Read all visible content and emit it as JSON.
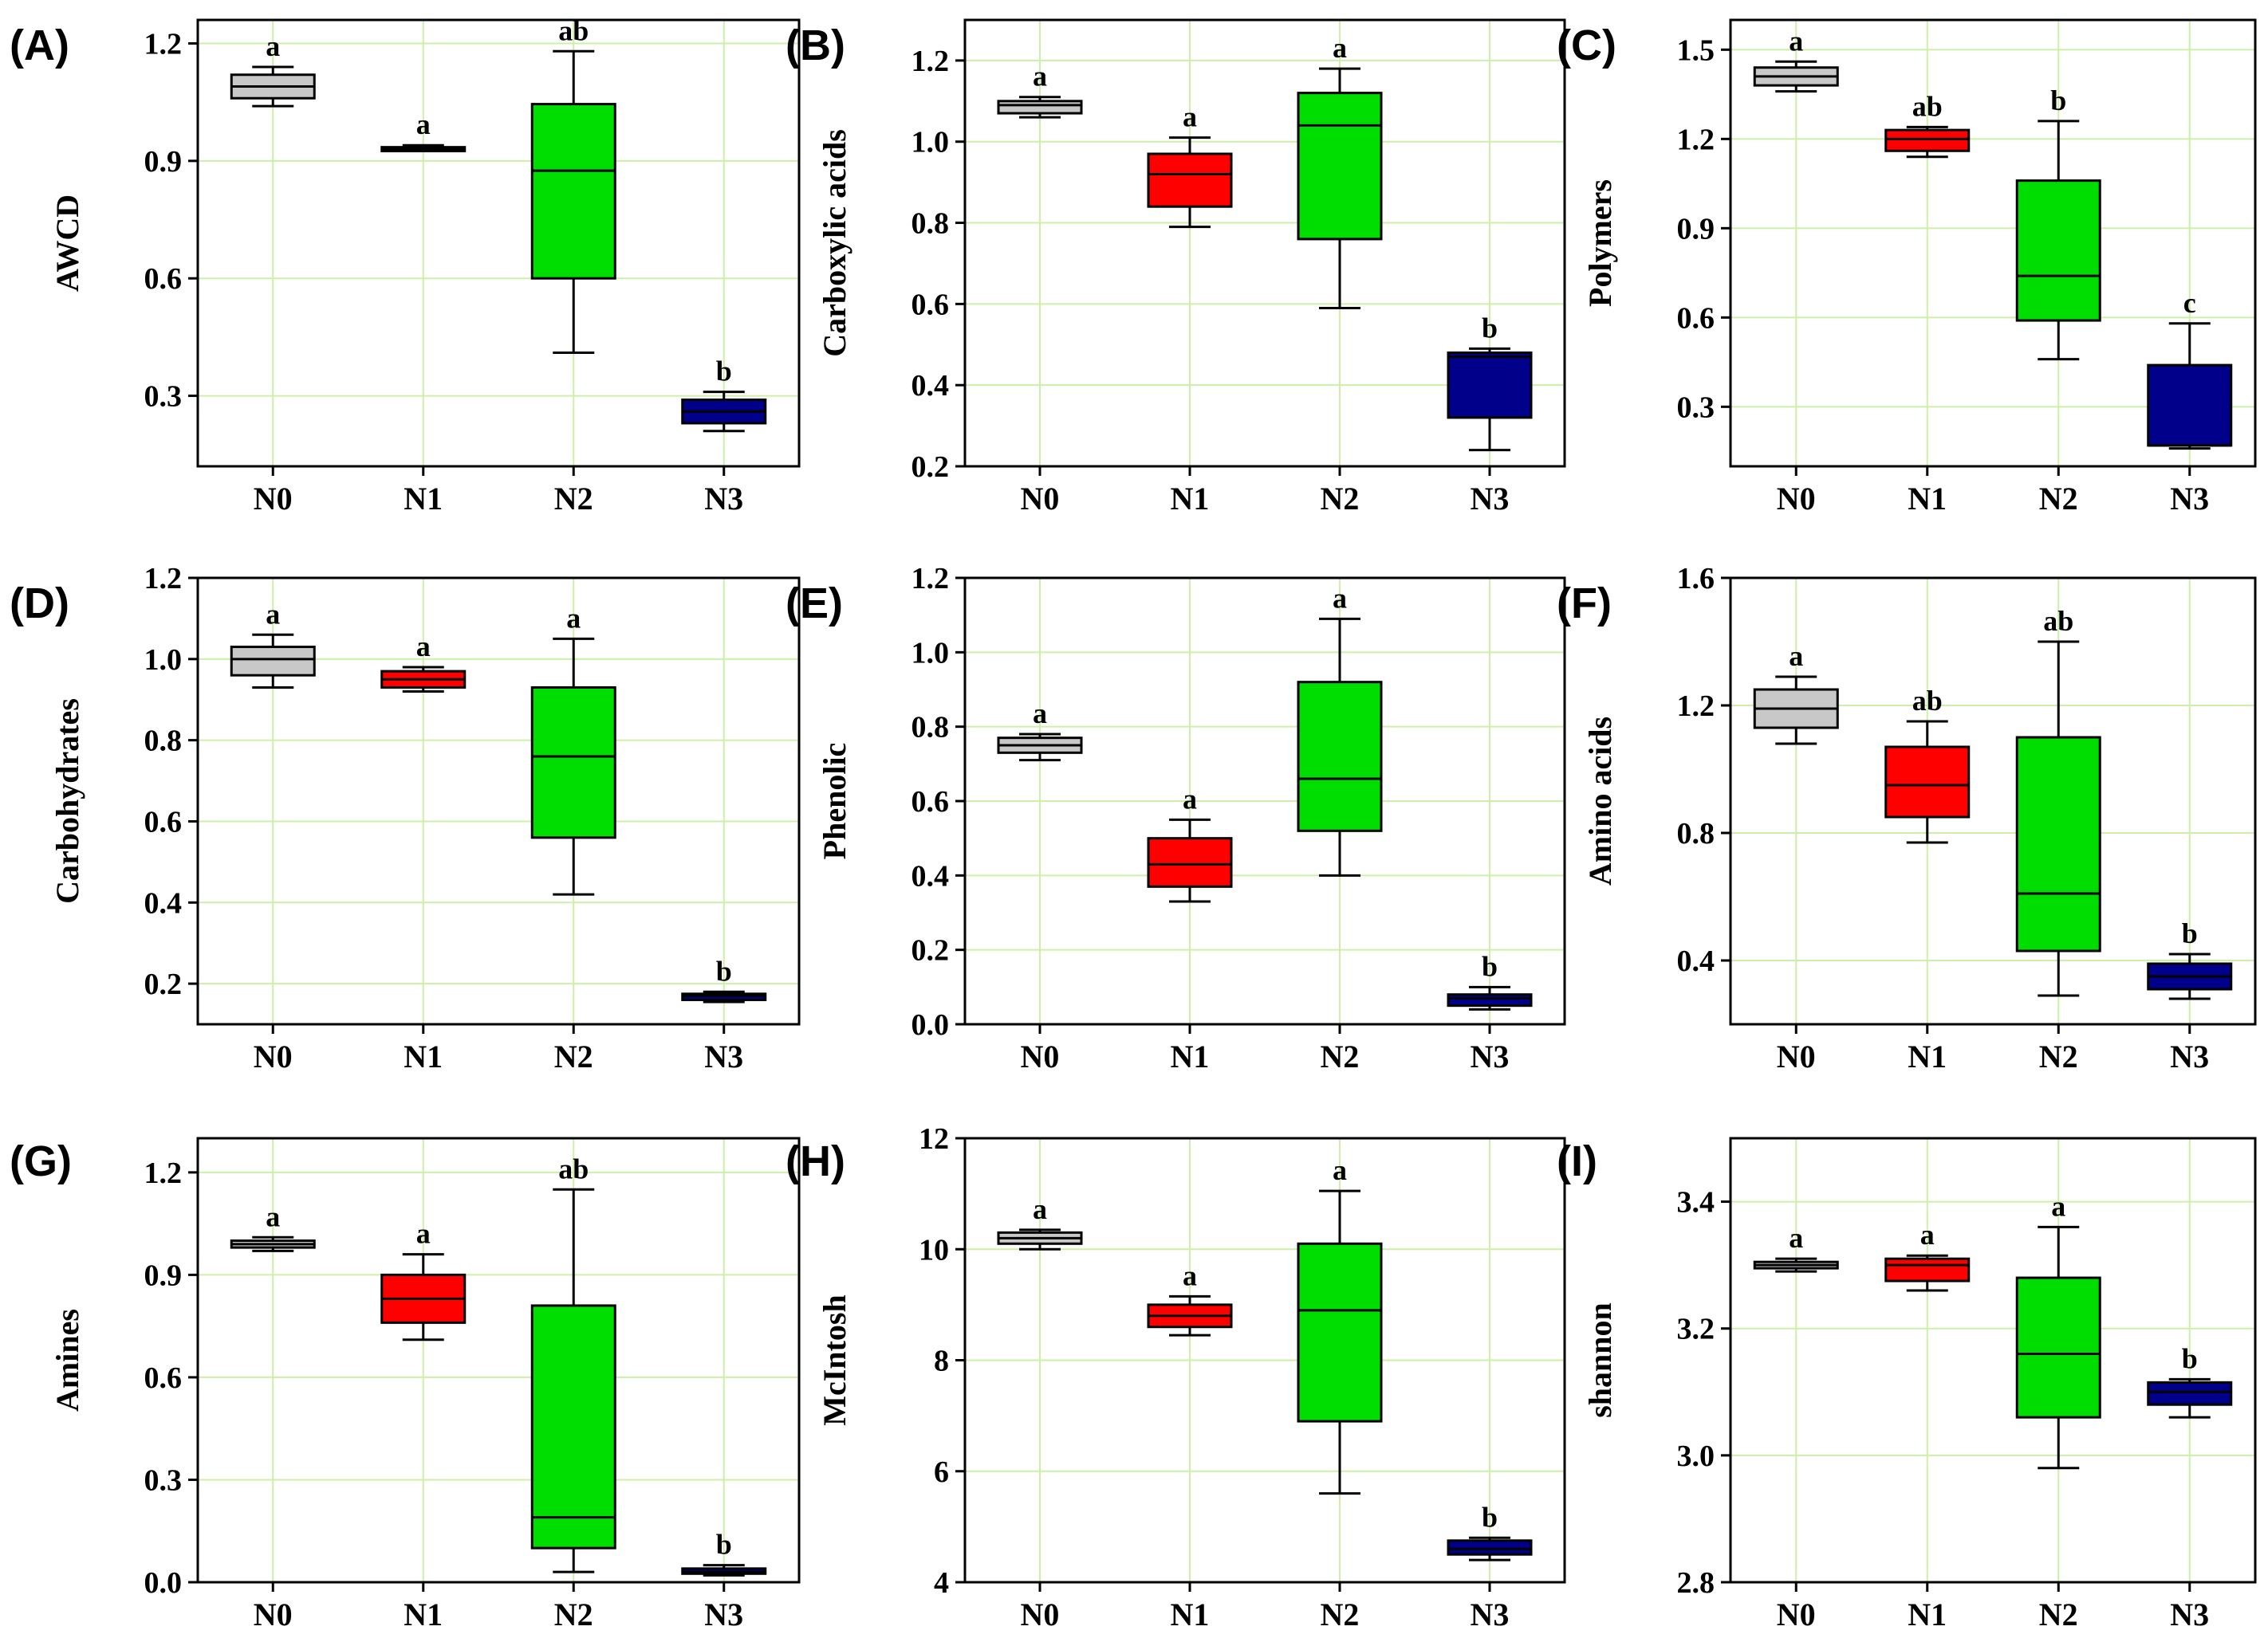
{
  "figure": {
    "colors": {
      "N0": "#c8c8c8",
      "N1": "#ff0000",
      "N2": "#00dd00",
      "N3": "#00008b",
      "grid": "#ccf0a6",
      "axis": "#000000"
    }
  },
  "chart_data": [
    {
      "panel": "(A)",
      "type": "box",
      "ylabel": "AWCD",
      "categories": [
        "N0",
        "N1",
        "N2",
        "N3"
      ],
      "ylim": [
        0.12,
        1.26
      ],
      "yticks": [
        0.3,
        0.6,
        0.9,
        1.2
      ],
      "yticklabels": [
        "0.3",
        "0.6",
        "0.9",
        "1.2"
      ],
      "boxes": [
        {
          "group": "N0",
          "min": 1.04,
          "q1": 1.06,
          "median": 1.09,
          "q3": 1.12,
          "max": 1.14,
          "letter": "a"
        },
        {
          "group": "N1",
          "min": 0.925,
          "q1": 0.925,
          "median": 0.93,
          "q3": 0.935,
          "max": 0.94,
          "letter": "a"
        },
        {
          "group": "N2",
          "min": 0.41,
          "q1": 0.6,
          "median": 0.875,
          "q3": 1.045,
          "max": 1.18,
          "letter": "ab"
        },
        {
          "group": "N3",
          "min": 0.21,
          "q1": 0.23,
          "median": 0.26,
          "q3": 0.29,
          "max": 0.31,
          "letter": "b"
        }
      ]
    },
    {
      "panel": "(B)",
      "type": "box",
      "ylabel": "Carboxylic acids",
      "categories": [
        "N0",
        "N1",
        "N2",
        "N3"
      ],
      "ylim": [
        0.2,
        1.3
      ],
      "yticks": [
        0.2,
        0.4,
        0.6,
        0.8,
        1.0,
        1.2
      ],
      "yticklabels": [
        "0.2",
        "0.4",
        "0.6",
        "0.8",
        "1.0",
        "1.2"
      ],
      "boxes": [
        {
          "group": "N0",
          "min": 1.06,
          "q1": 1.07,
          "median": 1.09,
          "q3": 1.1,
          "max": 1.11,
          "letter": "a"
        },
        {
          "group": "N1",
          "min": 0.79,
          "q1": 0.84,
          "median": 0.92,
          "q3": 0.97,
          "max": 1.01,
          "letter": "a"
        },
        {
          "group": "N2",
          "min": 0.59,
          "q1": 0.76,
          "median": 1.04,
          "q3": 1.12,
          "max": 1.18,
          "letter": "a"
        },
        {
          "group": "N3",
          "min": 0.24,
          "q1": 0.32,
          "median": 0.47,
          "q3": 0.48,
          "max": 0.49,
          "letter": "b"
        }
      ]
    },
    {
      "panel": "(C)",
      "type": "box",
      "ylabel": "Polymers",
      "categories": [
        "N0",
        "N1",
        "N2",
        "N3"
      ],
      "ylim": [
        0.1,
        1.6
      ],
      "yticks": [
        0.3,
        0.6,
        0.9,
        1.2,
        1.5
      ],
      "yticklabels": [
        "0.3",
        "0.6",
        "0.9",
        "1.2",
        "1.5"
      ],
      "boxes": [
        {
          "group": "N0",
          "min": 1.36,
          "q1": 1.38,
          "median": 1.41,
          "q3": 1.44,
          "max": 1.46,
          "letter": "a"
        },
        {
          "group": "N1",
          "min": 1.14,
          "q1": 1.16,
          "median": 1.2,
          "q3": 1.23,
          "max": 1.24,
          "letter": "ab"
        },
        {
          "group": "N2",
          "min": 0.46,
          "q1": 0.59,
          "median": 0.74,
          "q3": 1.06,
          "max": 1.26,
          "letter": "b"
        },
        {
          "group": "N3",
          "min": 0.16,
          "q1": 0.17,
          "median": 0.17,
          "q3": 0.44,
          "max": 0.58,
          "letter": "c"
        }
      ]
    },
    {
      "panel": "(D)",
      "type": "box",
      "ylabel": "Carbohydrates",
      "categories": [
        "N0",
        "N1",
        "N2",
        "N3"
      ],
      "ylim": [
        0.1,
        1.2
      ],
      "yticks": [
        0.2,
        0.4,
        0.6,
        0.8,
        1.0,
        1.2
      ],
      "yticklabels": [
        "0.2",
        "0.4",
        "0.6",
        "0.8",
        "1.0",
        "1.2"
      ],
      "boxes": [
        {
          "group": "N0",
          "min": 0.93,
          "q1": 0.96,
          "median": 1.0,
          "q3": 1.03,
          "max": 1.06,
          "letter": "a"
        },
        {
          "group": "N1",
          "min": 0.92,
          "q1": 0.93,
          "median": 0.95,
          "q3": 0.97,
          "max": 0.98,
          "letter": "a"
        },
        {
          "group": "N2",
          "min": 0.42,
          "q1": 0.56,
          "median": 0.76,
          "q3": 0.93,
          "max": 1.05,
          "letter": "a"
        },
        {
          "group": "N3",
          "min": 0.155,
          "q1": 0.16,
          "median": 0.17,
          "q3": 0.175,
          "max": 0.18,
          "letter": "b"
        }
      ]
    },
    {
      "panel": "(E)",
      "type": "box",
      "ylabel": "Phenolic",
      "categories": [
        "N0",
        "N1",
        "N2",
        "N3"
      ],
      "ylim": [
        0.0,
        1.2
      ],
      "yticks": [
        0.0,
        0.2,
        0.4,
        0.6,
        0.8,
        1.0,
        1.2
      ],
      "yticklabels": [
        "0.0",
        "0.2",
        "0.4",
        "0.6",
        "0.8",
        "1.0",
        "1.2"
      ],
      "boxes": [
        {
          "group": "N0",
          "min": 0.71,
          "q1": 0.73,
          "median": 0.75,
          "q3": 0.77,
          "max": 0.78,
          "letter": "a"
        },
        {
          "group": "N1",
          "min": 0.33,
          "q1": 0.37,
          "median": 0.43,
          "q3": 0.5,
          "max": 0.55,
          "letter": "a"
        },
        {
          "group": "N2",
          "min": 0.4,
          "q1": 0.52,
          "median": 0.66,
          "q3": 0.92,
          "max": 1.09,
          "letter": "a"
        },
        {
          "group": "N3",
          "min": 0.04,
          "q1": 0.05,
          "median": 0.07,
          "q3": 0.08,
          "max": 0.1,
          "letter": "b"
        }
      ]
    },
    {
      "panel": "(F)",
      "type": "box",
      "ylabel": "Amino acids",
      "categories": [
        "N0",
        "N1",
        "N2",
        "N3"
      ],
      "ylim": [
        0.2,
        1.6
      ],
      "yticks": [
        0.4,
        0.8,
        1.2,
        1.6
      ],
      "yticklabels": [
        "0.4",
        "0.8",
        "1.2",
        "1.6"
      ],
      "boxes": [
        {
          "group": "N0",
          "min": 1.08,
          "q1": 1.13,
          "median": 1.19,
          "q3": 1.25,
          "max": 1.29,
          "letter": "a"
        },
        {
          "group": "N1",
          "min": 0.77,
          "q1": 0.85,
          "median": 0.95,
          "q3": 1.07,
          "max": 1.15,
          "letter": "ab"
        },
        {
          "group": "N2",
          "min": 0.29,
          "q1": 0.43,
          "median": 0.61,
          "q3": 1.1,
          "max": 1.4,
          "letter": "ab"
        },
        {
          "group": "N3",
          "min": 0.28,
          "q1": 0.31,
          "median": 0.35,
          "q3": 0.39,
          "max": 0.42,
          "letter": "b"
        }
      ]
    },
    {
      "panel": "(G)",
      "type": "box",
      "ylabel": "Amines",
      "categories": [
        "N0",
        "N1",
        "N2",
        "N3"
      ],
      "ylim": [
        0.0,
        1.3
      ],
      "yticks": [
        0.0,
        0.3,
        0.6,
        0.9,
        1.2
      ],
      "yticklabels": [
        "0.0",
        "0.3",
        "0.6",
        "0.9",
        "1.2"
      ],
      "boxes": [
        {
          "group": "N0",
          "min": 0.97,
          "q1": 0.98,
          "median": 0.99,
          "q3": 1.0,
          "max": 1.01,
          "letter": "a"
        },
        {
          "group": "N1",
          "min": 0.71,
          "q1": 0.76,
          "median": 0.83,
          "q3": 0.9,
          "max": 0.96,
          "letter": "a"
        },
        {
          "group": "N2",
          "min": 0.03,
          "q1": 0.1,
          "median": 0.19,
          "q3": 0.81,
          "max": 1.15,
          "letter": "ab"
        },
        {
          "group": "N3",
          "min": 0.02,
          "q1": 0.025,
          "median": 0.03,
          "q3": 0.04,
          "max": 0.05,
          "letter": "b"
        }
      ]
    },
    {
      "panel": "(H)",
      "type": "box",
      "ylabel": "McIntosh",
      "categories": [
        "N0",
        "N1",
        "N2",
        "N3"
      ],
      "ylim": [
        4,
        12
      ],
      "yticks": [
        4,
        6,
        8,
        10,
        12
      ],
      "yticklabels": [
        "4",
        "6",
        "8",
        "10",
        "12"
      ],
      "boxes": [
        {
          "group": "N0",
          "min": 10.0,
          "q1": 10.1,
          "median": 10.2,
          "q3": 10.3,
          "max": 10.35,
          "letter": "a"
        },
        {
          "group": "N1",
          "min": 8.45,
          "q1": 8.6,
          "median": 8.8,
          "q3": 9.0,
          "max": 9.15,
          "letter": "a"
        },
        {
          "group": "N2",
          "min": 5.6,
          "q1": 6.9,
          "median": 8.9,
          "q3": 10.1,
          "max": 11.05,
          "letter": "a"
        },
        {
          "group": "N3",
          "min": 4.4,
          "q1": 4.5,
          "median": 4.6,
          "q3": 4.75,
          "max": 4.8,
          "letter": "b"
        }
      ]
    },
    {
      "panel": "(I)",
      "type": "box",
      "ylabel": "shannon",
      "categories": [
        "N0",
        "N1",
        "N2",
        "N3"
      ],
      "ylim": [
        2.8,
        3.5
      ],
      "yticks": [
        2.8,
        3.0,
        3.2,
        3.4
      ],
      "yticklabels": [
        "2.8",
        "3.0",
        "3.2",
        "3.4"
      ],
      "boxes": [
        {
          "group": "N0",
          "min": 3.29,
          "q1": 3.295,
          "median": 3.3,
          "q3": 3.305,
          "max": 3.31,
          "letter": "a"
        },
        {
          "group": "N1",
          "min": 3.26,
          "q1": 3.275,
          "median": 3.3,
          "q3": 3.31,
          "max": 3.315,
          "letter": "a"
        },
        {
          "group": "N2",
          "min": 2.98,
          "q1": 3.06,
          "median": 3.16,
          "q3": 3.28,
          "max": 3.36,
          "letter": "a"
        },
        {
          "group": "N3",
          "min": 3.06,
          "q1": 3.08,
          "median": 3.1,
          "q3": 3.115,
          "max": 3.12,
          "letter": "b"
        }
      ]
    }
  ]
}
